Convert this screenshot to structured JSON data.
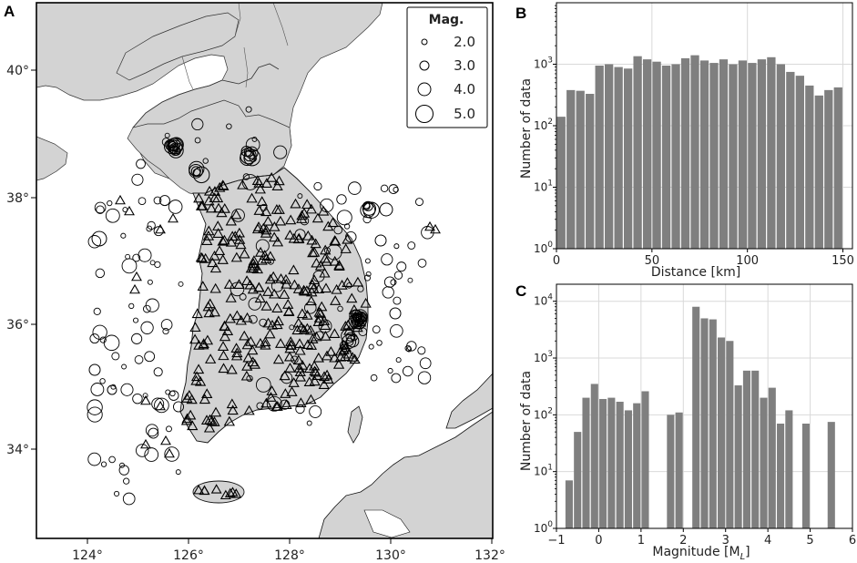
{
  "panels": {
    "a": "A",
    "b": "B",
    "c": "C"
  },
  "map": {
    "lon_ticks": [
      "124°",
      "126°",
      "128°",
      "130°",
      "132°"
    ],
    "lat_ticks": [
      "34°",
      "36°",
      "38°",
      "40°"
    ],
    "legend": {
      "title": "Mag.",
      "items": [
        "2.0",
        "3.0",
        "4.0",
        "5.0"
      ]
    },
    "colors": {
      "land": "#d3d3d3",
      "sea": "#ffffff",
      "border": "#333333"
    }
  },
  "chart_data": [
    {
      "type": "bar",
      "panel": "B",
      "xlabel": "Distance [km]",
      "ylabel": "Number of data",
      "yscale": "log",
      "xlim": [
        0,
        155
      ],
      "ylim_exp": [
        0,
        4
      ],
      "x_ticks": [
        "0",
        "50",
        "100",
        "150"
      ],
      "y_tick_exponents": [
        0,
        1,
        2,
        3
      ],
      "bin_width": 5,
      "bin_starts": [
        0,
        5,
        10,
        15,
        20,
        25,
        30,
        35,
        40,
        45,
        50,
        55,
        60,
        65,
        70,
        75,
        80,
        85,
        90,
        95,
        100,
        105,
        110,
        115,
        120,
        125,
        130,
        135,
        140,
        145
      ],
      "values": [
        140,
        380,
        370,
        330,
        950,
        1000,
        900,
        850,
        1350,
        1200,
        1100,
        950,
        1000,
        1250,
        1400,
        1150,
        1050,
        1200,
        1000,
        1150,
        1050,
        1200,
        1300,
        1000,
        750,
        650,
        450,
        310,
        380,
        420
      ],
      "color": "#7f7f7f",
      "grid": true
    },
    {
      "type": "bar",
      "panel": "C",
      "xlabel": "Magnitude [M",
      "xlabel_sub": "L",
      "xlabel_end": "]",
      "ylabel": "Number of data",
      "yscale": "log",
      "xlim": [
        -1,
        6
      ],
      "ylim_exp": [
        0,
        4.3
      ],
      "x_ticks": [
        "−1",
        "0",
        "1",
        "2",
        "3",
        "4",
        "5",
        "6"
      ],
      "y_tick_exponents": [
        0,
        1,
        2,
        3,
        4
      ],
      "bin_width": 0.2,
      "bin_starts": [
        -0.8,
        -0.6,
        -0.4,
        -0.2,
        0.0,
        0.2,
        0.4,
        0.6,
        0.8,
        1.0,
        1.6,
        1.8,
        2.2,
        2.4,
        2.6,
        2.8,
        3.0,
        3.2,
        3.4,
        3.6,
        3.8,
        4.0,
        4.2,
        4.4,
        4.8,
        5.4
      ],
      "values": [
        7,
        50,
        200,
        350,
        190,
        200,
        170,
        120,
        160,
        260,
        100,
        110,
        8000,
        5000,
        4800,
        2300,
        2000,
        330,
        600,
        600,
        200,
        300,
        70,
        120,
        70,
        75
      ],
      "color": "#7f7f7f",
      "grid": true
    }
  ]
}
